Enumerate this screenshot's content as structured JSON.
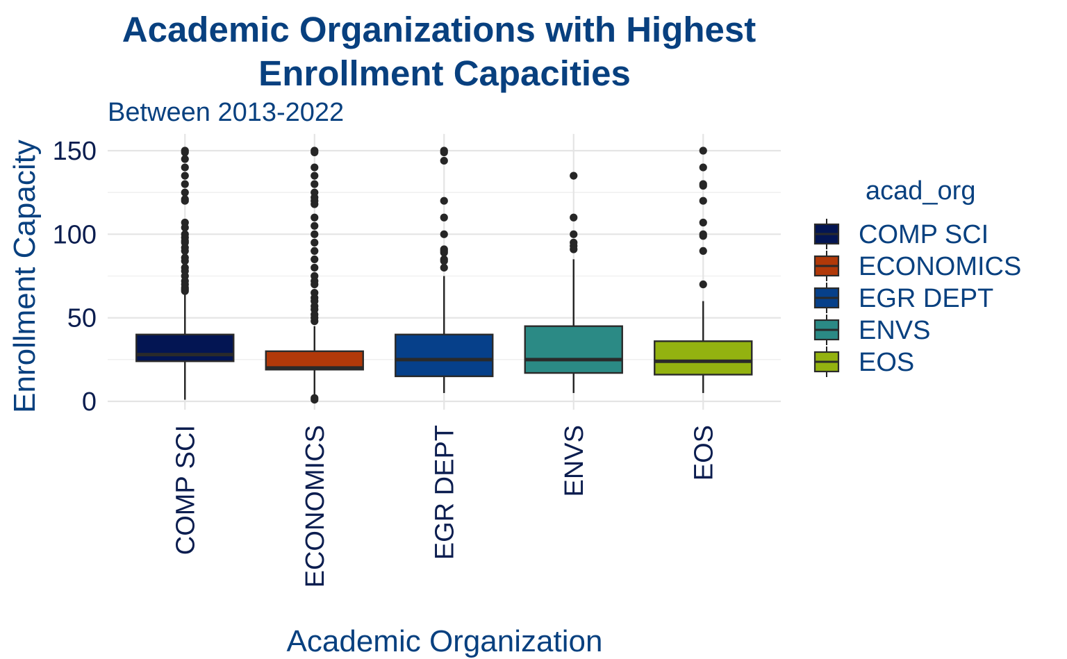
{
  "chart_data": {
    "type": "boxplot",
    "title_lines": [
      "Academic Organizations with Highest",
      "Enrollment Capacities"
    ],
    "subtitle": "Between 2013-2022",
    "xlabel": "Academic Organization",
    "ylabel": "Enrollment Capacity",
    "ylim": [
      -5,
      160
    ],
    "yticks": [
      0,
      50,
      100,
      150
    ],
    "grid": true,
    "legend": {
      "title": "acad_org",
      "position": "right"
    },
    "categories": [
      "COMP SCI",
      "ECONOMICS",
      "EGR DEPT",
      "ENVS",
      "EOS"
    ],
    "series": [
      {
        "name": "COMP SCI",
        "color": "#031553",
        "min": 1,
        "q1": 24,
        "median": 28,
        "q3": 40,
        "max": 65,
        "outliers": [
          150,
          149,
          145,
          140,
          135,
          130,
          125,
          121,
          120,
          107,
          104,
          100,
          98,
          96,
          95,
          92,
          90,
          86,
          84,
          80,
          78,
          75,
          72,
          70,
          68,
          67,
          66
        ]
      },
      {
        "name": "ECONOMICS",
        "color": "#b13909",
        "min": 1,
        "q1": 19,
        "median": 20,
        "q3": 30,
        "max": 45,
        "outliers": [
          150,
          149,
          140,
          135,
          130,
          125,
          122,
          120,
          118,
          110,
          105,
          100,
          95,
          90,
          85,
          80,
          75,
          72,
          70,
          65,
          62,
          60,
          57,
          55,
          52,
          50,
          48,
          2,
          1
        ]
      },
      {
        "name": "EGR DEPT",
        "color": "#06408a",
        "min": 5,
        "q1": 15,
        "median": 25,
        "q3": 40,
        "max": 75,
        "outliers": [
          150,
          149,
          144,
          120,
          110,
          100,
          91,
          90,
          89,
          85,
          84,
          80
        ]
      },
      {
        "name": "ENVS",
        "color": "#2b8a85",
        "min": 5,
        "q1": 17,
        "median": 25,
        "q3": 45,
        "max": 85,
        "outliers": [
          135,
          110,
          100,
          95,
          93,
          91
        ]
      },
      {
        "name": "EOS",
        "color": "#93b210",
        "min": 5,
        "q1": 16,
        "median": 24,
        "q3": 36,
        "max": 60,
        "outliers": [
          150,
          140,
          130,
          129,
          120,
          107,
          100,
          99,
          90,
          70
        ]
      }
    ]
  }
}
